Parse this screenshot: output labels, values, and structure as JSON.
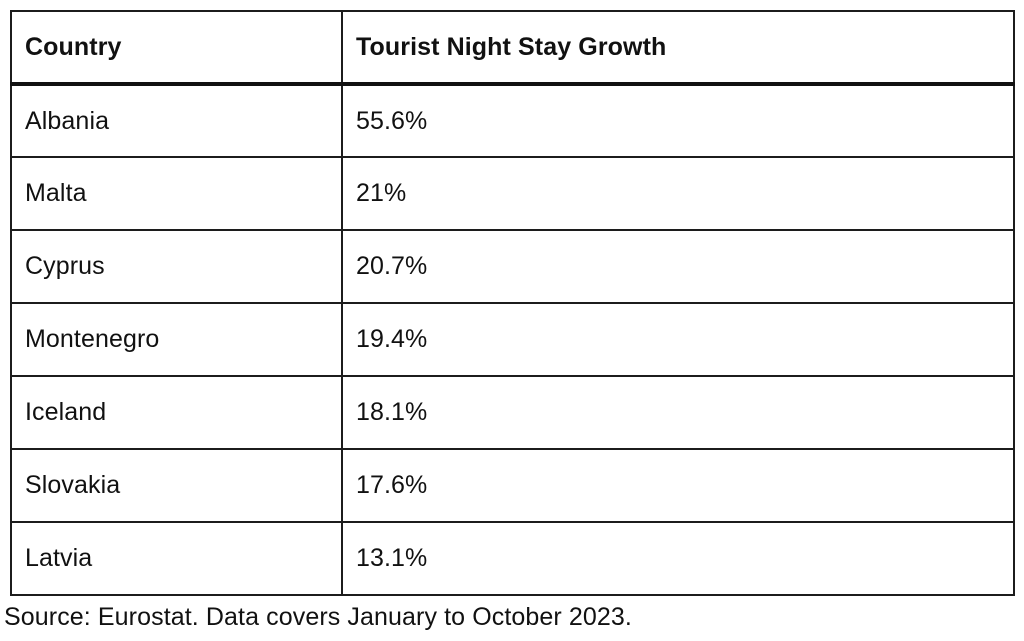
{
  "table": {
    "columns": [
      "Country",
      "Tourist Night Stay Growth"
    ],
    "rows": [
      {
        "country": "Albania",
        "growth": "55.6%"
      },
      {
        "country": "Malta",
        "growth": "21%"
      },
      {
        "country": "Cyprus",
        "growth": "20.7%"
      },
      {
        "country": "Montenegro",
        "growth": "19.4%"
      },
      {
        "country": "Iceland",
        "growth": "18.1%"
      },
      {
        "country": "Slovakia",
        "growth": "17.6%"
      },
      {
        "country": "Latvia",
        "growth": "13.1%"
      }
    ]
  },
  "source": "Source: Eurostat. Data covers January to October 2023.",
  "colors": {
    "background": "#ffffff",
    "border": "#1c1c1c",
    "text": "#111111"
  },
  "chart_data": {
    "type": "table",
    "title": "",
    "columns": [
      "Country",
      "Tourist Night Stay Growth"
    ],
    "categories": [
      "Albania",
      "Malta",
      "Cyprus",
      "Montenegro",
      "Iceland",
      "Slovakia",
      "Latvia"
    ],
    "values": [
      55.6,
      21,
      20.7,
      19.4,
      18.1,
      17.6,
      13.1
    ],
    "unit": "%",
    "source": "Source: Eurostat. Data covers January to October 2023."
  }
}
